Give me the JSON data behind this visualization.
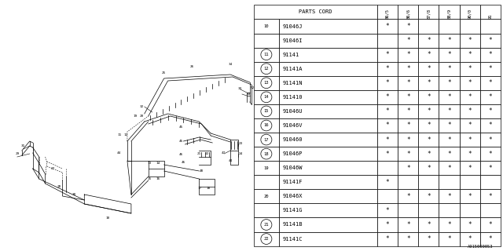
{
  "watermark": "A915000053",
  "table": {
    "header_col": "PARTS CORD",
    "year_cols": [
      "86/5",
      "86/6",
      "87/8",
      "88/9",
      "90/0",
      "91"
    ],
    "rows": [
      {
        "ref": "10",
        "circled": false,
        "part": "91046J",
        "stars": [
          1,
          1,
          0,
          0,
          0,
          0
        ]
      },
      {
        "ref": "",
        "circled": false,
        "part": "91046I",
        "stars": [
          0,
          1,
          1,
          1,
          1,
          1
        ]
      },
      {
        "ref": "11",
        "circled": true,
        "part": "91141",
        "stars": [
          1,
          1,
          1,
          1,
          1,
          1
        ]
      },
      {
        "ref": "12",
        "circled": true,
        "part": "91141A",
        "stars": [
          1,
          1,
          1,
          1,
          1,
          1
        ]
      },
      {
        "ref": "13",
        "circled": true,
        "part": "91141N",
        "stars": [
          1,
          1,
          1,
          1,
          1,
          1
        ]
      },
      {
        "ref": "14",
        "circled": true,
        "part": "911410",
        "stars": [
          1,
          1,
          1,
          1,
          1,
          1
        ]
      },
      {
        "ref": "15",
        "circled": true,
        "part": "91046U",
        "stars": [
          1,
          1,
          1,
          1,
          1,
          1
        ]
      },
      {
        "ref": "16",
        "circled": true,
        "part": "91046V",
        "stars": [
          1,
          1,
          1,
          1,
          1,
          1
        ]
      },
      {
        "ref": "17",
        "circled": true,
        "part": "910460",
        "stars": [
          1,
          1,
          1,
          1,
          1,
          1
        ]
      },
      {
        "ref": "18",
        "circled": true,
        "part": "91046P",
        "stars": [
          1,
          1,
          1,
          1,
          1,
          1
        ]
      },
      {
        "ref": "19",
        "circled": false,
        "part": "91046W",
        "stars": [
          0,
          1,
          1,
          1,
          1,
          1
        ]
      },
      {
        "ref": "",
        "circled": false,
        "part": "91141F",
        "stars": [
          1,
          0,
          0,
          0,
          0,
          0
        ]
      },
      {
        "ref": "20",
        "circled": false,
        "part": "91046X",
        "stars": [
          0,
          1,
          1,
          1,
          1,
          1
        ]
      },
      {
        "ref": "",
        "circled": false,
        "part": "91141G",
        "stars": [
          1,
          0,
          0,
          0,
          0,
          0
        ]
      },
      {
        "ref": "21",
        "circled": true,
        "part": "91141B",
        "stars": [
          1,
          1,
          1,
          1,
          1,
          1
        ]
      },
      {
        "ref": "22",
        "circled": true,
        "part": "91141C",
        "stars": [
          1,
          1,
          1,
          1,
          1,
          1
        ]
      }
    ]
  },
  "bg_color": "#ffffff",
  "line_color": "#000000",
  "text_color": "#000000"
}
